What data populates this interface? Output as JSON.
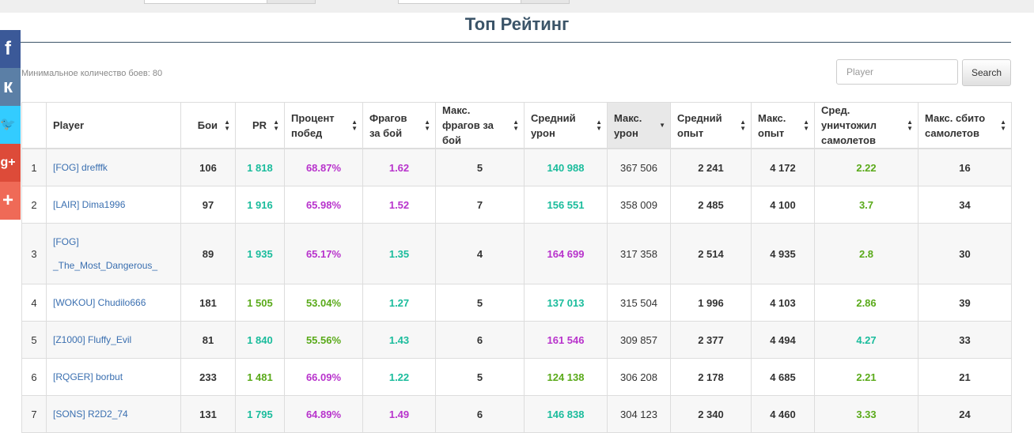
{
  "page": {
    "title": "Топ Рейтинг",
    "min_battles": "Минимальное количество боев: 80"
  },
  "search": {
    "placeholder": "Player",
    "button": "Search"
  },
  "social": [
    {
      "name": "facebook",
      "glyph": "f",
      "color": "#3b5998"
    },
    {
      "name": "vkontakte",
      "glyph": "к",
      "color": "#5b7fa6"
    },
    {
      "name": "twitter",
      "glyph": "🐦",
      "color": "#33ccff"
    },
    {
      "name": "google-plus",
      "glyph": "g+",
      "color": "#dd4b39"
    },
    {
      "name": "add-more",
      "glyph": "+",
      "color": "#ef6a57"
    }
  ],
  "colors": {
    "teal": "#1abc9c",
    "purple": "#b833cc",
    "green": "#5aaa1a"
  },
  "table": {
    "headers": [
      {
        "label": "",
        "key": "idx",
        "sortable": false
      },
      {
        "label": "Player",
        "key": "player",
        "sortable": false
      },
      {
        "label": "Бои",
        "key": "battles",
        "sortable": true
      },
      {
        "label": "PR",
        "key": "pr",
        "sortable": true
      },
      {
        "label": "Процент побед",
        "key": "winrate",
        "sortable": true
      },
      {
        "label": "Фрагов за бой",
        "key": "frags",
        "sortable": true
      },
      {
        "label": "Макс. фрагов за бой",
        "key": "max_frags",
        "sortable": true
      },
      {
        "label": "Средний урон",
        "key": "avg_dmg",
        "sortable": true
      },
      {
        "label": "Макс. урон",
        "key": "max_dmg",
        "sortable": true,
        "sorted": true
      },
      {
        "label": "Средний опыт",
        "key": "avg_xp",
        "sortable": true
      },
      {
        "label": "Макс. опыт",
        "key": "max_xp",
        "sortable": true
      },
      {
        "label": "Сред. уничтожил самолетов",
        "key": "avg_planes",
        "sortable": true
      },
      {
        "label": "Макс. сбито самолетов",
        "key": "max_planes",
        "sortable": true
      }
    ],
    "rows": [
      {
        "idx": "1",
        "player": "[FOG] drefffk",
        "battles": "106",
        "pr": "1 818",
        "winrate": "68.87%",
        "frags": "1.62",
        "max_frags": "5",
        "avg_dmg": "140 988",
        "max_dmg": "367 506",
        "avg_xp": "2 241",
        "max_xp": "4 172",
        "avg_planes": "2.22",
        "max_planes": "16",
        "colors": {
          "pr": "teal",
          "winrate": "purple",
          "frags": "purple",
          "avg_dmg": "teal",
          "avg_planes": "green"
        }
      },
      {
        "idx": "2",
        "player": "[LAIR] Dima1996",
        "battles": "97",
        "pr": "1 916",
        "winrate": "65.98%",
        "frags": "1.52",
        "max_frags": "7",
        "avg_dmg": "156 551",
        "max_dmg": "358 009",
        "avg_xp": "2 485",
        "max_xp": "4 100",
        "avg_planes": "3.7",
        "max_planes": "34",
        "colors": {
          "pr": "teal",
          "winrate": "purple",
          "frags": "purple",
          "avg_dmg": "teal",
          "avg_planes": "green"
        }
      },
      {
        "idx": "3",
        "player": "[FOG] _The_Most_Dangerous_",
        "battles": "89",
        "pr": "1 935",
        "winrate": "65.17%",
        "frags": "1.35",
        "max_frags": "4",
        "avg_dmg": "164 699",
        "max_dmg": "317 358",
        "avg_xp": "2 514",
        "max_xp": "4 935",
        "avg_planes": "2.8",
        "max_planes": "30",
        "colors": {
          "pr": "teal",
          "winrate": "purple",
          "frags": "teal",
          "avg_dmg": "purple",
          "avg_planes": "green"
        }
      },
      {
        "idx": "4",
        "player": "[WOKOU] Chudilo666",
        "battles": "181",
        "pr": "1 505",
        "winrate": "53.04%",
        "frags": "1.27",
        "max_frags": "5",
        "avg_dmg": "137 013",
        "max_dmg": "315 504",
        "avg_xp": "1 996",
        "max_xp": "4 103",
        "avg_planes": "2.86",
        "max_planes": "39",
        "colors": {
          "pr": "green",
          "winrate": "green",
          "frags": "teal",
          "avg_dmg": "teal",
          "avg_planes": "green"
        }
      },
      {
        "idx": "5",
        "player": "[Z1000] Fluffy_Evil",
        "battles": "81",
        "pr": "1 840",
        "winrate": "55.56%",
        "frags": "1.43",
        "max_frags": "6",
        "avg_dmg": "161 546",
        "max_dmg": "309 857",
        "avg_xp": "2 377",
        "max_xp": "4 494",
        "avg_planes": "4.27",
        "max_planes": "33",
        "colors": {
          "pr": "teal",
          "winrate": "green",
          "frags": "teal",
          "avg_dmg": "purple",
          "avg_planes": "teal"
        }
      },
      {
        "idx": "6",
        "player": "[RQGER] borbut",
        "battles": "233",
        "pr": "1 481",
        "winrate": "66.09%",
        "frags": "1.22",
        "max_frags": "5",
        "avg_dmg": "124 138",
        "max_dmg": "306 208",
        "avg_xp": "2 178",
        "max_xp": "4 685",
        "avg_planes": "2.21",
        "max_planes": "21",
        "colors": {
          "pr": "green",
          "winrate": "purple",
          "frags": "teal",
          "avg_dmg": "green",
          "avg_planes": "green"
        }
      },
      {
        "idx": "7",
        "player": "[SONS] R2D2_74",
        "battles": "131",
        "pr": "1 795",
        "winrate": "64.89%",
        "frags": "1.49",
        "max_frags": "6",
        "avg_dmg": "146 838",
        "max_dmg": "304 123",
        "avg_xp": "2 340",
        "max_xp": "4 460",
        "avg_planes": "3.33",
        "max_planes": "24",
        "colors": {
          "pr": "teal",
          "winrate": "purple",
          "frags": "purple",
          "avg_dmg": "teal",
          "avg_planes": "green"
        }
      }
    ]
  }
}
